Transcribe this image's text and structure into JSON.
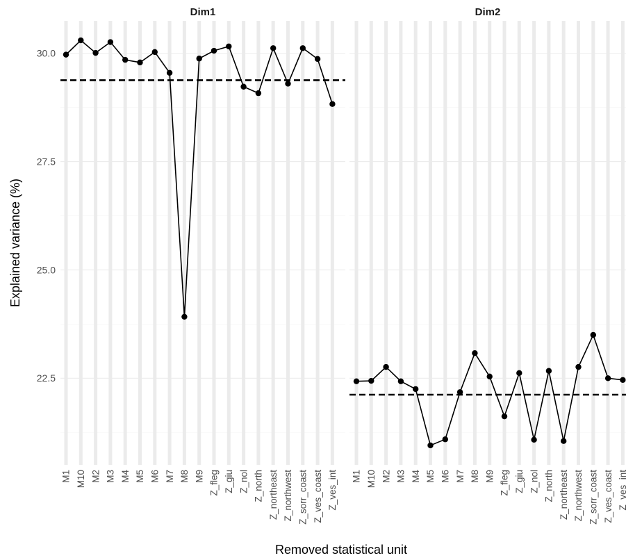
{
  "chart_data": {
    "type": "line",
    "xlabel": "Removed statistical unit",
    "ylabel": "Explained variance (%)",
    "ylim": [
      20.5,
      30.75
    ],
    "y_ticks": [
      "22.5",
      "25.0",
      "27.5",
      "30.0"
    ],
    "y_tick_values": [
      22.5,
      25.0,
      27.5,
      30.0
    ],
    "grid": true,
    "legend": "none",
    "line_color": "#000000",
    "point_color": "#000000",
    "panels": [
      {
        "title": "Dim1",
        "categories": [
          "M1",
          "M10",
          "M2",
          "M3",
          "M4",
          "M5",
          "M6",
          "M7",
          "M8",
          "M9",
          "Z_fleg",
          "Z_giu",
          "Z_nol",
          "Z_north",
          "Z_northeast",
          "Z_northwest",
          "Z_sorr_coast",
          "Z_ves_coast",
          "Z_ves_int"
        ],
        "values": [
          29.97,
          30.3,
          30.01,
          30.26,
          29.85,
          29.79,
          30.03,
          29.55,
          23.92,
          29.88,
          30.06,
          30.16,
          29.23,
          29.08,
          30.12,
          29.3,
          30.12,
          29.87,
          28.83
        ],
        "reference_line": 29.38
      },
      {
        "title": "Dim2",
        "categories": [
          "M1",
          "M10",
          "M2",
          "M3",
          "M4",
          "M5",
          "M6",
          "M7",
          "M8",
          "M9",
          "Z_fleg",
          "Z_giu",
          "Z_nol",
          "Z_north",
          "Z_northeast",
          "Z_northwest",
          "Z_sorr_coast",
          "Z_ves_coast",
          "Z_ves_int"
        ],
        "values": [
          22.43,
          22.44,
          22.76,
          22.43,
          22.25,
          20.95,
          21.09,
          22.18,
          23.08,
          22.54,
          21.62,
          22.62,
          21.08,
          22.67,
          21.05,
          22.76,
          23.5,
          22.5,
          22.46
        ],
        "reference_line": 22.12
      }
    ]
  }
}
